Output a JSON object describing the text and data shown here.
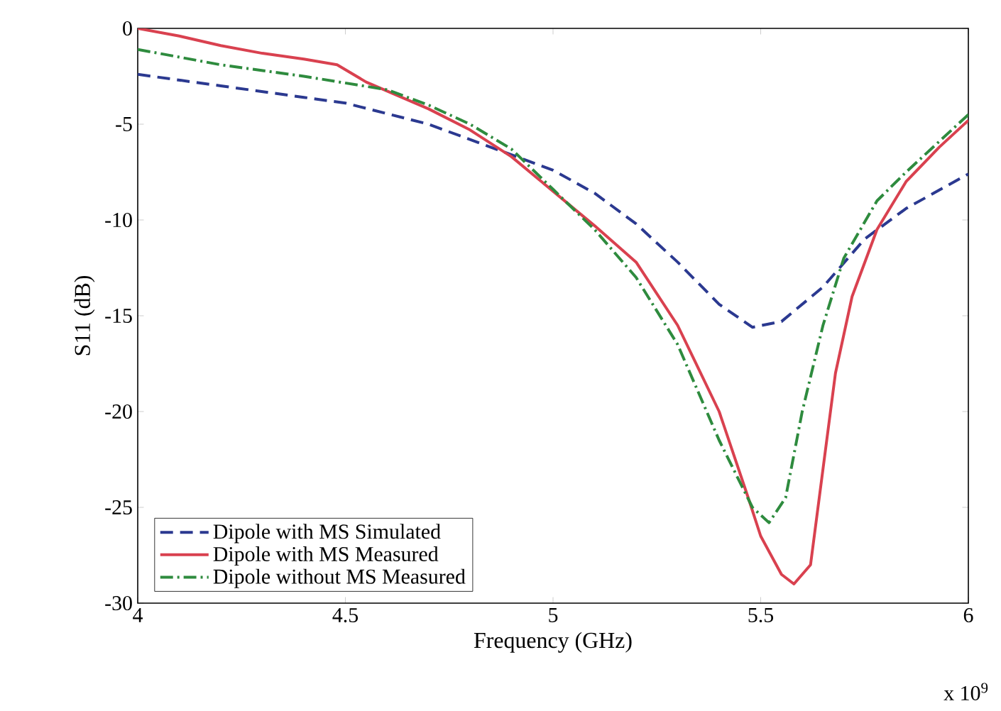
{
  "chart_data": {
    "type": "line",
    "xlabel": "Frequency (GHz)",
    "ylabel": "S11 (dB)",
    "xlim": [
      4,
      6
    ],
    "xticks": [
      4,
      4.5,
      5,
      5.5,
      6
    ],
    "ylim": [
      -30,
      0
    ],
    "yticks": [
      -30,
      -25,
      -20,
      -15,
      -10,
      -5,
      0
    ],
    "legend": "bottom left",
    "annotations": [
      "x 10$^{9}$"
    ],
    "series": [
      {
        "name": "Dipole with MS Simulated",
        "color": "#2b3990",
        "line_style": "dashed",
        "x": [
          4,
          4.2,
          4.4,
          4.5,
          4.7,
          4.9,
          5.0,
          5.1,
          5.2,
          5.3,
          5.4,
          5.48,
          5.55,
          5.65,
          5.75,
          5.85,
          5.95,
          6
        ],
        "values": [
          -2.4,
          -3,
          -3.6,
          -3.9,
          -5,
          -6.6,
          -7.4,
          -8.6,
          -10.2,
          -12.2,
          -14.4,
          -15.6,
          -15.3,
          -13.5,
          -11,
          -9.4,
          -8.2,
          -7.6
        ]
      },
      {
        "name": "Dipole with MS Measured",
        "color": "#d9414f",
        "line_style": "solid",
        "x": [
          4,
          4.1,
          4.2,
          4.3,
          4.4,
          4.48,
          4.55,
          4.7,
          4.8,
          4.9,
          5.0,
          5.1,
          5.2,
          5.3,
          5.4,
          5.47,
          5.5,
          5.55,
          5.58,
          5.62,
          5.65,
          5.68,
          5.72,
          5.78,
          5.85,
          5.93,
          6
        ],
        "values": [
          0,
          -0.4,
          -0.9,
          -1.3,
          -1.6,
          -1.9,
          -2.8,
          -4.2,
          -5.3,
          -6.7,
          -8.5,
          -10.3,
          -12.2,
          -15.5,
          -20,
          -24.5,
          -26.5,
          -28.5,
          -29,
          -28,
          -23,
          -18,
          -14,
          -10.5,
          -8,
          -6.2,
          -4.8
        ]
      },
      {
        "name": "Dipole without MS Measured",
        "color": "#2e8b3e",
        "line_style": "dashdot",
        "x": [
          4,
          4.2,
          4.4,
          4.6,
          4.7,
          4.8,
          4.9,
          5.0,
          5.1,
          5.2,
          5.3,
          5.4,
          5.48,
          5.52,
          5.56,
          5.6,
          5.65,
          5.7,
          5.78,
          5.85,
          5.95,
          6
        ],
        "values": [
          -1.1,
          -1.9,
          -2.5,
          -3.2,
          -4,
          -5,
          -6.3,
          -8.4,
          -10.5,
          -13,
          -16.5,
          -21.5,
          -25,
          -25.8,
          -24.5,
          -20,
          -15.5,
          -12,
          -9,
          -7.5,
          -5.5,
          -4.5
        ]
      }
    ]
  }
}
